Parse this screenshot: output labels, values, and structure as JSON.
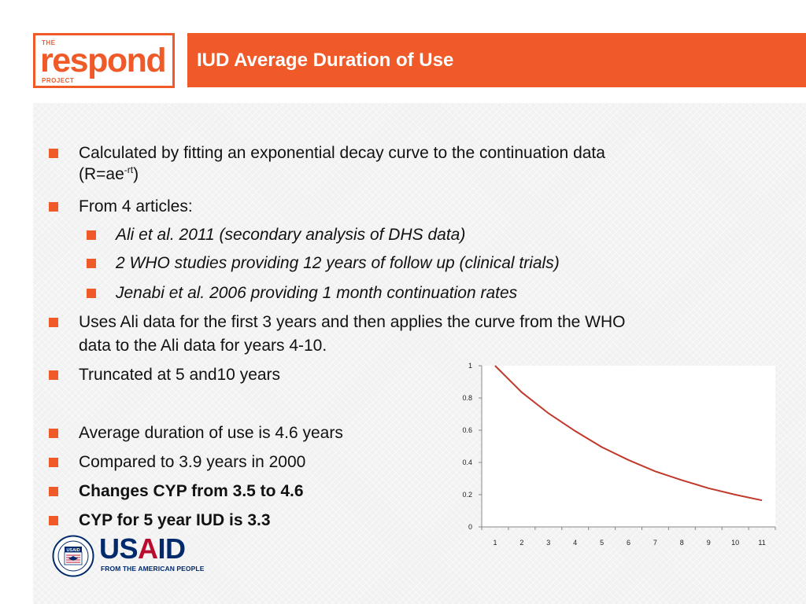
{
  "logo": {
    "top": "THE",
    "word": "respond",
    "bottom": "PROJECT"
  },
  "title": "IUD Average Duration of Use",
  "bullets": {
    "b1_line1": "Calculated by fitting an exponential decay curve to the continuation data",
    "b1_line2_pre": "(R=ae",
    "b1_line2_sup": "-rt",
    "b1_line2_post": ")",
    "b2": "From 4 articles:",
    "b2_sub1": "Ali et al. 2011 (secondary analysis of DHS data)",
    "b2_sub2": "2 WHO studies providing 12 years of follow up (clinical trials)",
    "b2_sub3": "Jenabi et al. 2006 providing 1 month continuation rates",
    "b3_line1": "Uses Ali data for the first 3 years and then applies the curve from the WHO",
    "b3_line2": "data to the Ali data for years 4-10.",
    "b4": "Truncated at 5 and10 years",
    "b5": "Average duration of use is 4.6 years",
    "b6": "Compared to 3.9 years in 2000",
    "b7": "Changes CYP from 3.5 to 4.6",
    "b8": "CYP for 5 year IUD is 3.3"
  },
  "chart_data": {
    "type": "line",
    "title": "",
    "xlabel": "",
    "ylabel": "",
    "categories": [
      "1",
      "2",
      "3",
      "4",
      "5",
      "6",
      "7",
      "8",
      "9",
      "10",
      "11"
    ],
    "yticks": [
      "0",
      "0.2",
      "0.4",
      "0.6",
      "0.8",
      "1"
    ],
    "ylim": [
      0,
      1
    ],
    "grid": false,
    "series": [
      {
        "values": [
          1.0,
          0.835,
          0.705,
          0.595,
          0.495,
          0.415,
          0.345,
          0.29,
          0.24,
          0.2,
          0.165
        ]
      }
    ],
    "colors": {
      "line": "#c0392b"
    }
  },
  "footer": {
    "usaid_u": "US",
    "usaid_a": "A",
    "usaid_id": "ID",
    "usaid_tagline": "FROM THE AMERICAN PEOPLE",
    "seal_text": "USAID"
  }
}
